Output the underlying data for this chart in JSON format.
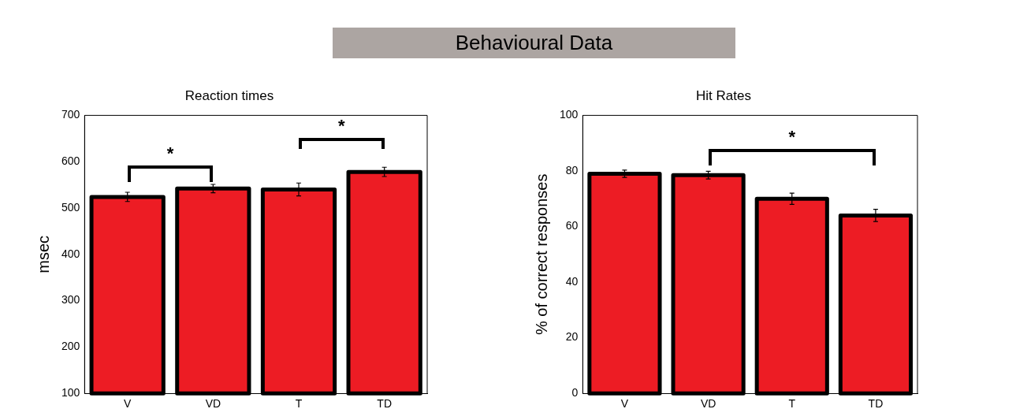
{
  "chart_data": [
    {
      "type": "other",
      "title": "Behavioural Data"
    },
    {
      "type": "bar",
      "title": "Reaction times",
      "ylabel": "msec",
      "categories": [
        "V",
        "VD",
        "T",
        "TD"
      ],
      "values": [
        524,
        542,
        540,
        578
      ],
      "errors": [
        10,
        9,
        14,
        10
      ],
      "color": "#ed1c24",
      "ylim": [
        100,
        700
      ],
      "yticks": [
        100,
        200,
        300,
        400,
        500,
        600,
        700
      ],
      "grid": false,
      "legend": false,
      "annotations": [
        "*",
        "*"
      ]
    },
    {
      "type": "bar",
      "title": "Hit Rates",
      "ylabel": "% of correct responses",
      "categories": [
        "V",
        "VD",
        "T",
        "TD"
      ],
      "values": [
        79,
        78.5,
        70,
        64
      ],
      "errors": [
        1.3,
        1.4,
        2,
        2.2
      ],
      "color": "#ed1c24",
      "ylim": [
        0,
        100
      ],
      "yticks": [
        0,
        20,
        40,
        60,
        80,
        100
      ],
      "grid": false,
      "legend": false,
      "annotations": [
        "*"
      ]
    }
  ]
}
